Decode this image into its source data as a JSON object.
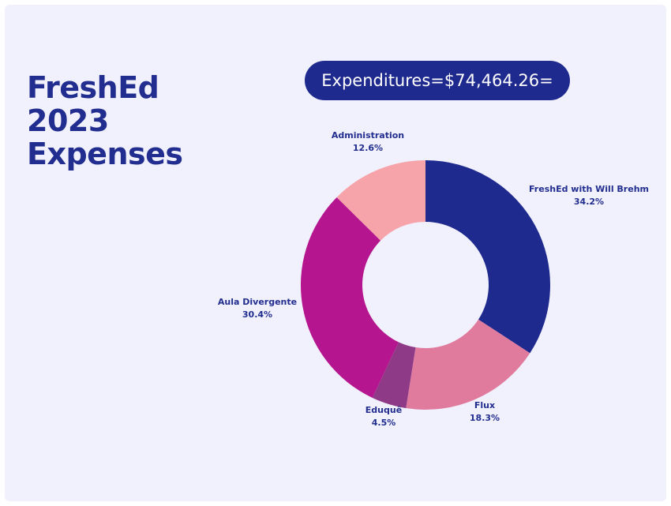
{
  "title_lines": [
    "FreshEd",
    "2023",
    "Expenses"
  ],
  "expenditures_label": "Expenditures=$74,464.26=",
  "colors": {
    "background": "#f1f0fd",
    "text": "#222e8f",
    "pill": "#1f2a8e"
  },
  "chart_data": {
    "type": "pie",
    "donut": true,
    "title": "",
    "slices": [
      {
        "label": "FreshEd with Will Brehm",
        "value": 34.2,
        "display": "34.2%",
        "color": "#1f2a8e"
      },
      {
        "label": "Flux",
        "value": 18.3,
        "display": "18.3%",
        "color": "#e07b9e"
      },
      {
        "label": "Eduquê",
        "value": 4.5,
        "display": "4.5%",
        "color": "#8e3a86"
      },
      {
        "label": "Aula Divergente",
        "value": 30.4,
        "display": "30.4%",
        "color": "#b5168f"
      },
      {
        "label": "Administration",
        "value": 12.6,
        "display": "12.6%",
        "color": "#f6a3a9"
      }
    ]
  }
}
